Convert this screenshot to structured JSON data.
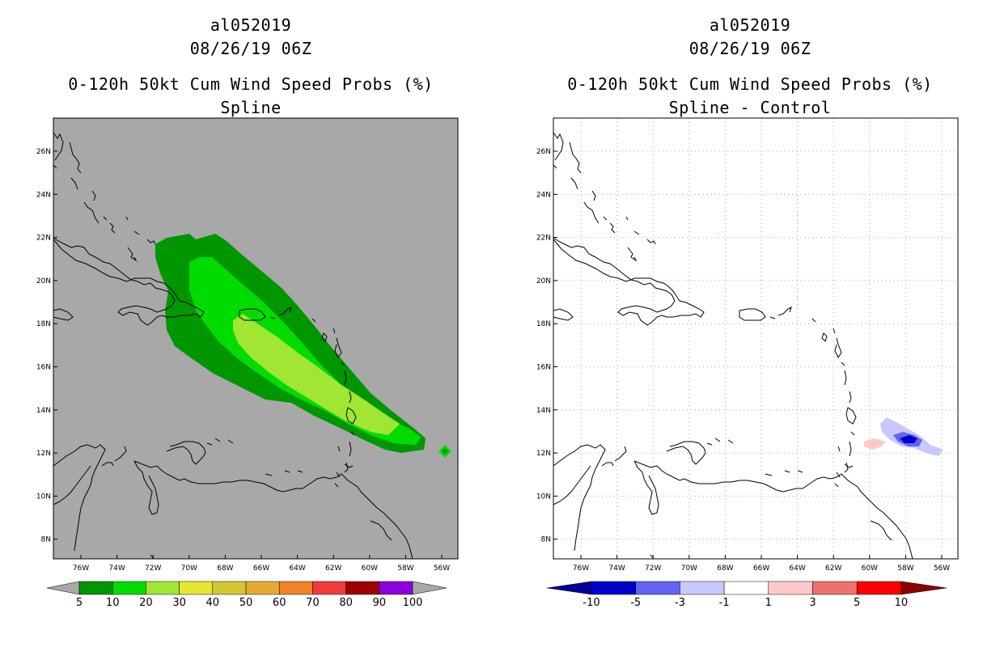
{
  "left": {
    "storm_id": "al052019",
    "datetime": "08/26/19 06Z",
    "product": "0-120h 50kt Cum Wind Speed Probs (%)",
    "subtitle": "Spline",
    "background": "#a8a8a8",
    "colorbar": {
      "colors": [
        "#009600",
        "#00dc00",
        "#a0e632",
        "#e6e632",
        "#d2c832",
        "#e6aa32",
        "#f08228",
        "#f03c3c",
        "#a00000",
        "#8c00dc"
      ],
      "labels": [
        "5",
        "10",
        "20",
        "30",
        "40",
        "50",
        "60",
        "70",
        "80",
        "90",
        "100"
      ]
    }
  },
  "right": {
    "storm_id": "al052019",
    "datetime": "08/26/19 06Z",
    "product": "0-120h 50kt Cum Wind Speed Probs (%)",
    "subtitle": "Spline - Control",
    "background": "#ffffff",
    "colorbar": {
      "colors": [
        "#0000c8",
        "#6464f0",
        "#c8c8ff",
        "#ffffff",
        "#ffc8c8",
        "#f07070",
        "#ff0000"
      ],
      "end_low": "#000096",
      "end_high": "#8c0000",
      "labels": [
        "-10",
        "-5",
        "-3",
        "-1",
        "1",
        "3",
        "5",
        "10"
      ]
    }
  },
  "axes": {
    "lat_labels": [
      "26N",
      "24N",
      "22N",
      "20N",
      "18N",
      "16N",
      "14N",
      "12N",
      "10N",
      "8N"
    ],
    "lon_labels": [
      "76W",
      "74W",
      "72W",
      "70W",
      "68W",
      "66W",
      "64W",
      "62W",
      "60W",
      "58W",
      "56W"
    ]
  }
}
